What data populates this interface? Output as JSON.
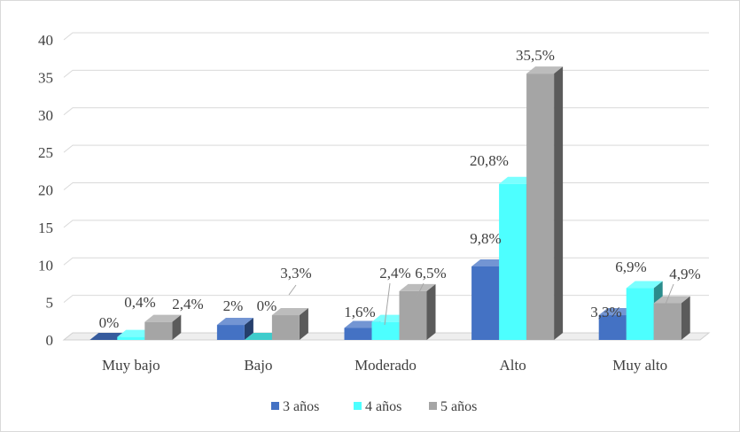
{
  "chart_data": {
    "type": "bar",
    "categories": [
      "Muy bajo",
      "Bajo",
      "Moderado",
      "Alto",
      "Muy alto"
    ],
    "series": [
      {
        "name": "3 años",
        "values": [
          0,
          2,
          1.6,
          9.8,
          3.3
        ],
        "labels": [
          "0%",
          "2%",
          "1,6%",
          "9,8%",
          "3,3%"
        ],
        "color": "#4472c4"
      },
      {
        "name": "4 años",
        "values": [
          0.4,
          0,
          2.4,
          20.8,
          6.9
        ],
        "labels": [
          "0,4%",
          "0%",
          "2,4%",
          "20,8%",
          "6,9%"
        ],
        "color": "#4dffff"
      },
      {
        "name": "5 años",
        "values": [
          2.4,
          3.3,
          6.5,
          35.5,
          4.9
        ],
        "labels": [
          "2,4%",
          "3,3%",
          "6,5%",
          "35,5%",
          "4,9%"
        ],
        "color": "#a5a5a5"
      }
    ],
    "yticks": [
      "0",
      "5",
      "10",
      "15",
      "20",
      "25",
      "30",
      "35",
      "40"
    ],
    "ylim": [
      0,
      40
    ],
    "grid": true,
    "legend": "bottom",
    "style": "3d-clustered-column"
  }
}
